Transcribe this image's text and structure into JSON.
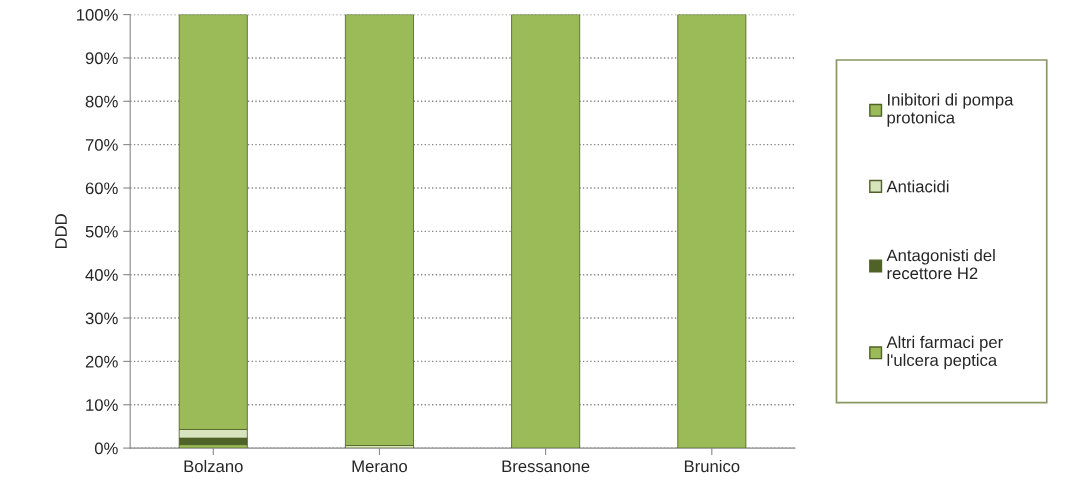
{
  "chart_data": {
    "type": "bar",
    "stacked": true,
    "ylabel": "DDD",
    "categories": [
      "Bolzano",
      "Merano",
      "Bressanone",
      "Brunico"
    ],
    "series": [
      {
        "name": "Altri farmaci per l'ulcera peptica",
        "color": "#9bbb59",
        "values": [
          0.8,
          0,
          0,
          0
        ]
      },
      {
        "name": "Antagonisti del recettore H2",
        "color": "#4f6228",
        "values": [
          1.5,
          0,
          0,
          0
        ]
      },
      {
        "name": "Antiacidi",
        "color": "#d7e4bd",
        "values": [
          2.0,
          0.6,
          0,
          0
        ]
      },
      {
        "name": "Inibitori di pompa protonica",
        "color": "#9bbb59",
        "values": [
          95.7,
          99.4,
          100,
          100
        ]
      }
    ],
    "ylim": [
      0,
      100
    ],
    "yticks": [
      {
        "value": 0,
        "label": "0%"
      },
      {
        "value": 10,
        "label": "10%"
      },
      {
        "value": 20,
        "label": "20%"
      },
      {
        "value": 30,
        "label": "30%"
      },
      {
        "value": 40,
        "label": "40%"
      },
      {
        "value": 50,
        "label": "50%"
      },
      {
        "value": 60,
        "label": "60%"
      },
      {
        "value": 70,
        "label": "70%"
      },
      {
        "value": 80,
        "label": "80%"
      },
      {
        "value": 90,
        "label": "90%"
      },
      {
        "value": 100,
        "label": "100%"
      }
    ],
    "grid": "y",
    "legend": "right"
  }
}
